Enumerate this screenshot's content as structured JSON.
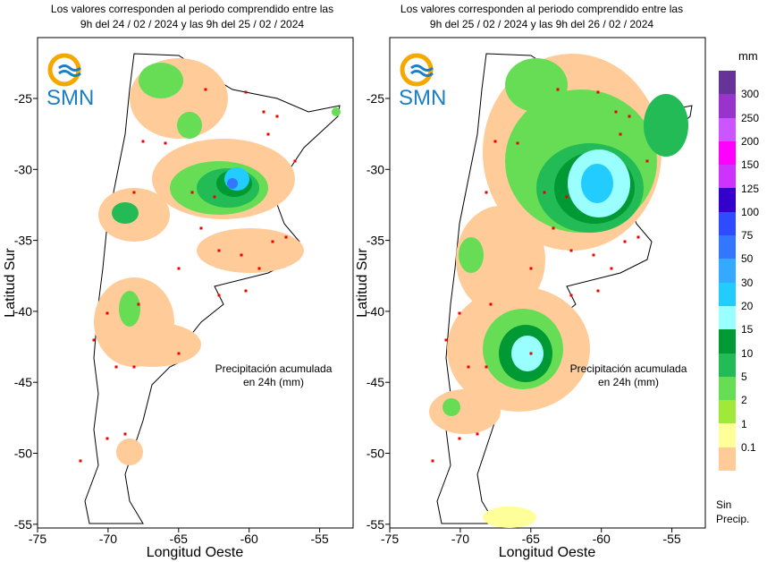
{
  "panels": [
    {
      "title_line1": "Los valores corresponden al periodo comprendido entre las",
      "title_line2": "9h del 24 / 02 / 2024  y las 9h del 25 / 02 / 2024"
    },
    {
      "title_line1": "Los valores corresponden al periodo comprendido entre las",
      "title_line2": "9h del 25 / 02 / 2024  y las 9h del 26 / 02 / 2024"
    }
  ],
  "logo_text": "SMN",
  "annotation_line1": "Precipitación acumulada",
  "annotation_line2": "en 24h (mm)",
  "axes": {
    "ylabel": "Latitud Sur",
    "xlabel": "Longitud Oeste",
    "xticks": [
      "-75",
      "-70",
      "-65",
      "-60",
      "-55"
    ],
    "yticks": [
      "-25",
      "-30",
      "-35",
      "-40",
      "-45",
      "-50",
      "-55"
    ]
  },
  "legend": {
    "unit": "mm",
    "no_precip_line1": "Sin",
    "no_precip_line2": "Precip.",
    "labels": [
      "300",
      "250",
      "200",
      "150",
      "125",
      "100",
      "75",
      "50",
      "30",
      "20",
      "15",
      "10",
      "5",
      "2",
      "1",
      "0.1"
    ],
    "colors": [
      "#663399",
      "#9933cc",
      "#cc55ff",
      "#ff00ff",
      "#cc33ff",
      "#3300cc",
      "#2f4bff",
      "#3377ff",
      "#33aaff",
      "#22ccff",
      "#99ffff",
      "#009933",
      "#22bb55",
      "#66dd55",
      "#a0e83a",
      "#ffff99",
      "#ffcc99"
    ]
  }
}
